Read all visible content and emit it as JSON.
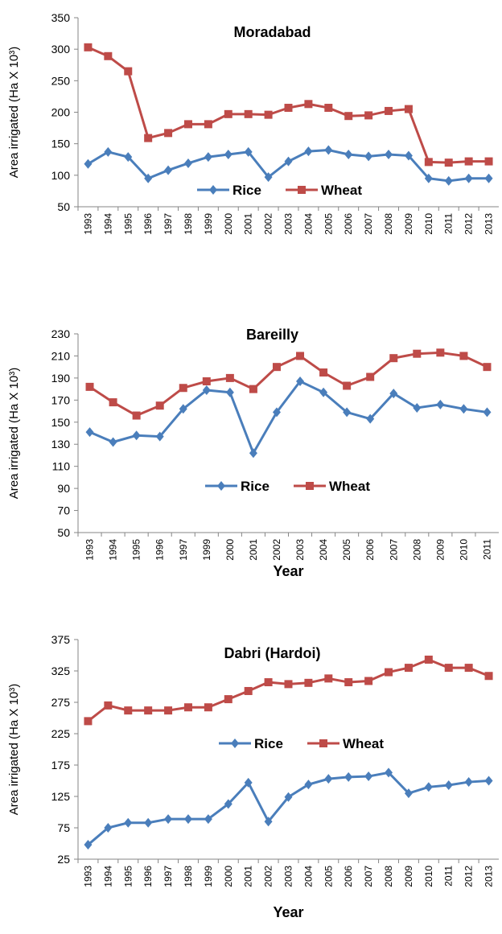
{
  "chart_data": [
    {
      "type": "line",
      "title": "Moradabad",
      "y_label": "Area irrigated (Ha X 10³)",
      "categories": [
        "1993",
        "1994",
        "1995",
        "1996",
        "1997",
        "1998",
        "1999",
        "2000",
        "2001",
        "2002",
        "2003",
        "2004",
        "2005",
        "2006",
        "2007",
        "2008",
        "2009",
        "2010",
        "2011",
        "2012",
        "2013"
      ],
      "series": [
        {
          "name": "Rice",
          "color": "#4a7ebb",
          "marker": "diamond",
          "values": [
            118,
            137,
            129,
            95,
            108,
            119,
            129,
            133,
            137,
            97,
            122,
            138,
            140,
            133,
            130,
            133,
            131,
            95,
            91,
            95,
            95
          ]
        },
        {
          "name": "Wheat",
          "color": "#be4b48",
          "marker": "square",
          "values": [
            303,
            289,
            265,
            159,
            167,
            181,
            181,
            197,
            197,
            196,
            207,
            213,
            207,
            194,
            195,
            202,
            205,
            121,
            120,
            122,
            122
          ]
        }
      ],
      "ylim": [
        50,
        350
      ],
      "yticks": [
        50,
        100,
        150,
        200,
        250,
        300,
        350
      ]
    },
    {
      "type": "line",
      "title": "Bareilly",
      "y_label": "Area irrigated (Ha X 10³)",
      "x_label": "Year",
      "categories": [
        "1993",
        "1994",
        "1995",
        "1996",
        "1997",
        "1999",
        "2000",
        "2001",
        "2002",
        "2003",
        "2004",
        "2005",
        "2006",
        "2007",
        "2008",
        "2009",
        "2010",
        "2011"
      ],
      "series": [
        {
          "name": "Rice",
          "color": "#4a7ebb",
          "marker": "diamond",
          "values": [
            141,
            132,
            138,
            137,
            162,
            179,
            177,
            122,
            159,
            187,
            177,
            159,
            153,
            176,
            163,
            166,
            162,
            159
          ]
        },
        {
          "name": "Wheat",
          "color": "#be4b48",
          "marker": "square",
          "values": [
            182,
            168,
            156,
            165,
            181,
            187,
            190,
            180,
            200,
            210,
            195,
            183,
            191,
            208,
            212,
            213,
            210,
            200
          ]
        }
      ],
      "ylim": [
        50,
        230
      ],
      "yticks": [
        50,
        70,
        90,
        110,
        130,
        150,
        170,
        190,
        210,
        230
      ]
    },
    {
      "type": "line",
      "title": "Dabri (Hardoi)",
      "y_label": "Area irrigated (Ha X 10³)",
      "x_label": "Year",
      "categories": [
        "1993",
        "1994",
        "1995",
        "1996",
        "1997",
        "1998",
        "1999",
        "2000",
        "2001",
        "2002",
        "2003",
        "2004",
        "2005",
        "2006",
        "2007",
        "2008",
        "2009",
        "2010",
        "2011",
        "2012",
        "2013"
      ],
      "series": [
        {
          "name": "Rice",
          "color": "#4a7ebb",
          "marker": "diamond",
          "values": [
            48,
            75,
            83,
            83,
            89,
            89,
            89,
            113,
            147,
            85,
            124,
            144,
            153,
            156,
            157,
            163,
            130,
            140,
            143,
            148,
            150
          ]
        },
        {
          "name": "Wheat",
          "color": "#be4b48",
          "marker": "square",
          "values": [
            245,
            270,
            262,
            262,
            262,
            267,
            267,
            280,
            293,
            307,
            304,
            306,
            313,
            307,
            309,
            323,
            330,
            343,
            330,
            330,
            317
          ]
        }
      ],
      "ylim": [
        25,
        375
      ],
      "yticks": [
        25,
        75,
        125,
        175,
        225,
        275,
        325,
        375
      ]
    }
  ]
}
